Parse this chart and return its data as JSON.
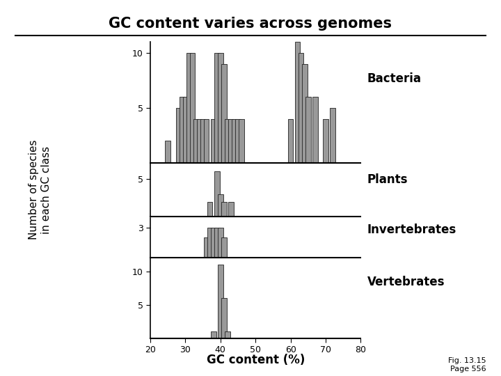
{
  "title": "GC content varies across genomes",
  "xlabel": "GC content (%)",
  "ylabel": "Number of species\nin each GC class",
  "fig_note": "Fig. 13.15\nPage 556",
  "xticks": [
    20,
    30,
    40,
    50,
    60,
    70,
    80
  ],
  "xmin": 20,
  "xmax": 80,
  "bar_width": 1.5,
  "bar_color": "#999999",
  "bar_edgecolor": "#222222",
  "panels": [
    {
      "label": "Bacteria",
      "yticks": [
        5,
        10
      ],
      "ymax": 11,
      "bars": {
        "25": 2,
        "28": 5,
        "29": 6,
        "30": 6,
        "31": 10,
        "32": 10,
        "33": 4,
        "34": 4,
        "35": 4,
        "36": 4,
        "38": 4,
        "39": 10,
        "40": 10,
        "41": 9,
        "42": 4,
        "43": 4,
        "44": 4,
        "45": 4,
        "46": 4,
        "60": 4,
        "62": 11,
        "63": 10,
        "64": 9,
        "65": 6,
        "67": 6,
        "70": 4,
        "72": 5
      }
    },
    {
      "label": "Plants",
      "yticks": [
        5
      ],
      "ymax": 7,
      "bars": {
        "37": 2,
        "39": 6,
        "40": 3,
        "41": 2,
        "43": 2
      }
    },
    {
      "label": "Invertebrates",
      "yticks": [
        3
      ],
      "ymax": 4,
      "bars": {
        "36": 2,
        "37": 3,
        "38": 3,
        "39": 3,
        "40": 3,
        "41": 2
      }
    },
    {
      "label": "Vertebrates",
      "yticks": [
        5,
        10
      ],
      "ymax": 12,
      "bars": {
        "38": 1,
        "40": 11,
        "41": 6,
        "42": 1
      }
    }
  ]
}
